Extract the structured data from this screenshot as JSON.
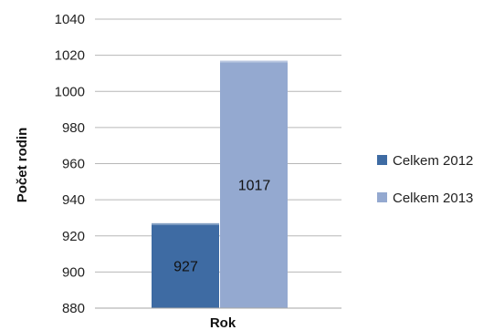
{
  "chart_data": {
    "type": "bar",
    "categories": [
      ""
    ],
    "series": [
      {
        "name": "Celkem 2012",
        "values": [
          927
        ],
        "color": "#3E6BA3"
      },
      {
        "name": "Celkem 2013",
        "values": [
          1017
        ],
        "color": "#94A9D0"
      }
    ],
    "xlabel": "Rok",
    "ylabel": "Počet rodin",
    "ylim": [
      880,
      1040
    ],
    "yticks": [
      880,
      900,
      920,
      940,
      960,
      980,
      1000,
      1020,
      1040
    ],
    "grid": true,
    "legend_position": "right"
  }
}
